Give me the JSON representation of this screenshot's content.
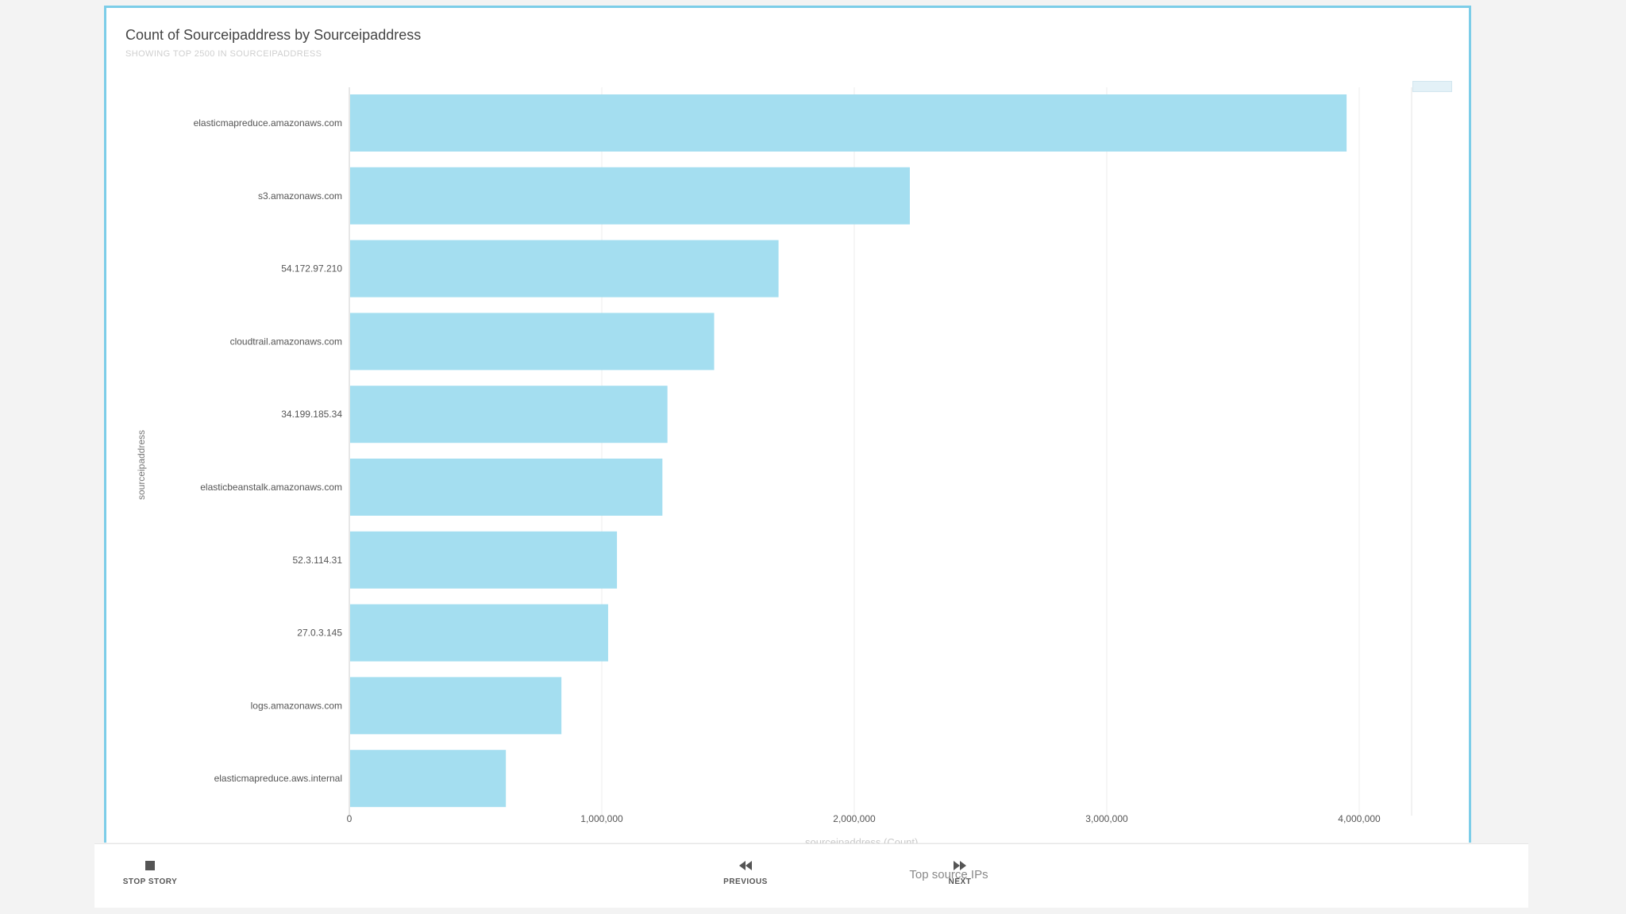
{
  "chart_data": {
    "type": "bar",
    "orientation": "horizontal",
    "title": "Count of Sourceipaddress by Sourceipaddress",
    "subtitle": "SHOWING TOP 2500 IN SOURCEIPADDRESS",
    "ylabel": "sourceipaddress",
    "xlabel": "sourceipaddress (Count)",
    "categories": [
      "elasticmapreduce.amazonaws.com",
      "s3.amazonaws.com",
      "54.172.97.210",
      "cloudtrail.amazonaws.com",
      "34.199.185.34",
      "elasticbeanstalk.amazonaws.com",
      "52.3.114.31",
      "27.0.3.145",
      "logs.amazonaws.com",
      "elasticmapreduce.aws.internal"
    ],
    "values": [
      3950000,
      2220000,
      1700000,
      1445000,
      1260000,
      1240000,
      1060000,
      1025000,
      840000,
      620000
    ],
    "xlim": [
      0,
      4200000
    ],
    "xticks": [
      0,
      1000000,
      2000000,
      3000000,
      4000000
    ],
    "xtick_labels": [
      "0",
      "1,000,000",
      "2,000,000",
      "3,000,000",
      "4,000,000"
    ],
    "grid": true,
    "bar_color": "#a4def0"
  },
  "footer": {
    "stop_label": "STOP STORY",
    "prev_label": "PREVIOUS",
    "next_label": "NEXT",
    "story_title": "Top source IPs"
  },
  "icons": {
    "stop": "stop-icon",
    "previous": "rewind-icon",
    "next": "fast-forward-icon"
  }
}
